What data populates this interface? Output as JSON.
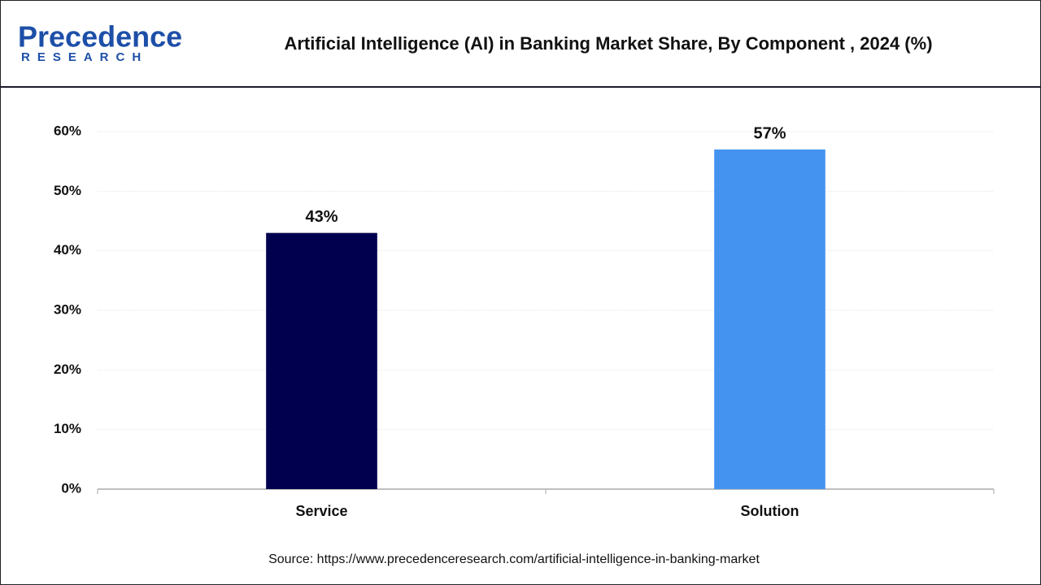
{
  "logo": {
    "name": "Precedence",
    "tagline": "RESEARCH"
  },
  "chart_data": {
    "type": "bar",
    "title": "Artificial Intelligence (AI) in Banking Market Share, By Component , 2024 (%)",
    "categories": [
      "Service",
      "Solution"
    ],
    "values": [
      43,
      57
    ],
    "value_labels": [
      "43%",
      "57%"
    ],
    "colors": [
      "#00004f",
      "#4593f0"
    ],
    "ylim": [
      0,
      60
    ],
    "yticks": [
      {
        "value": 0,
        "label": "0%"
      },
      {
        "value": 10,
        "label": "10%"
      },
      {
        "value": 20,
        "label": "20%"
      },
      {
        "value": 30,
        "label": "30%"
      },
      {
        "value": 40,
        "label": "40%"
      },
      {
        "value": 50,
        "label": "50%"
      },
      {
        "value": 60,
        "label": "60%"
      }
    ],
    "grid": true,
    "source": "Source: https://www.precedenceresearch.com/artificial-intelligence-in-banking-market"
  }
}
